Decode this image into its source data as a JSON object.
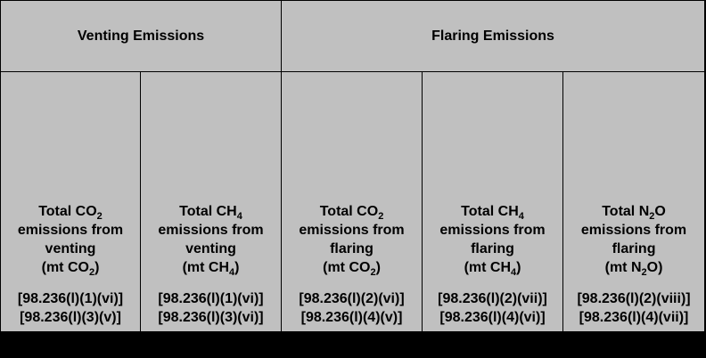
{
  "groups": {
    "venting": "Venting Emissions",
    "flaring": "Flaring Emissions"
  },
  "columns": [
    {
      "title_pre": "Total CO",
      "title_sub": "2",
      "line2": "emissions from",
      "line3": "venting",
      "unit_pre": "(mt CO",
      "unit_sub": "2",
      "unit_post": ")",
      "ref1": "[98.236(l)(1)(vi)]",
      "ref2": "[98.236(l)(3)(v)]"
    },
    {
      "title_pre": "Total CH",
      "title_sub": "4",
      "line2": "emissions from",
      "line3": "venting",
      "unit_pre": "(mt CH",
      "unit_sub": "4",
      "unit_post": ")",
      "ref1": "[98.236(l)(1)(vi)]",
      "ref2": "[98.236(l)(3)(vi)]"
    },
    {
      "title_pre": "Total CO",
      "title_sub": "2",
      "line2": "emissions from",
      "line3": "flaring",
      "unit_pre": "(mt CO",
      "unit_sub": "2",
      "unit_post": ")",
      "ref1": "[98.236(l)(2)(vi)]",
      "ref2": "[98.236(l)(4)(v)]"
    },
    {
      "title_pre": "Total CH",
      "title_sub": "4",
      "line2": "emissions from",
      "line3": "flaring",
      "unit_pre": "(mt CH",
      "unit_sub": "4",
      "unit_post": ")",
      "ref1": "[98.236(l)(2)(vii)]",
      "ref2": "[98.236(l)(4)(vi)]"
    },
    {
      "title_pre": "Total N",
      "title_sub": "2",
      "title_post": "O",
      "line2": "emissions from",
      "line3": "flaring",
      "unit_pre": "(mt N",
      "unit_sub": "2",
      "unit_post": "O)",
      "ref1": "[98.236(l)(2)(viii)]",
      "ref2": "[98.236(l)(4)(vii)]"
    }
  ]
}
